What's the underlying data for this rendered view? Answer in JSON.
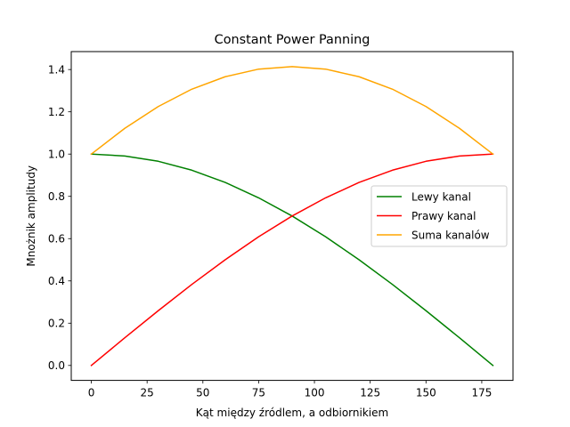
{
  "chart_data": {
    "type": "line",
    "title": "Constant Power Panning",
    "xlabel": "Kąt między źródlem, a odbiornikiem",
    "ylabel": "Mnożnik amplitudy",
    "xlim": [
      -9,
      189
    ],
    "ylim": [
      -0.0707,
      1.4849
    ],
    "xticks": [
      0,
      25,
      50,
      75,
      100,
      125,
      150,
      175
    ],
    "yticks": [
      0.0,
      0.2,
      0.4,
      0.6,
      0.8,
      1.0,
      1.2,
      1.4
    ],
    "ytick_labels": [
      "0.0",
      "0.2",
      "0.4",
      "0.6",
      "0.8",
      "1.0",
      "1.2",
      "1.4"
    ],
    "grid": false,
    "legend_position": "center-right",
    "x": [
      0,
      15,
      30,
      45,
      60,
      75,
      90,
      105,
      120,
      135,
      150,
      165,
      180
    ],
    "series": [
      {
        "name": "Lewy kanal",
        "color": "#008000",
        "values": [
          1.0,
          0.991,
          0.966,
          0.924,
          0.866,
          0.793,
          0.707,
          0.609,
          0.5,
          0.383,
          0.259,
          0.131,
          0.0
        ]
      },
      {
        "name": "Prawy kanal",
        "color": "#ff0000",
        "values": [
          0.0,
          0.131,
          0.259,
          0.383,
          0.5,
          0.609,
          0.707,
          0.793,
          0.866,
          0.924,
          0.966,
          0.991,
          1.0
        ]
      },
      {
        "name": "Suma kanalów",
        "color": "#ffa500",
        "values": [
          1.0,
          1.122,
          1.225,
          1.307,
          1.366,
          1.402,
          1.414,
          1.402,
          1.366,
          1.307,
          1.225,
          1.122,
          1.0
        ]
      }
    ]
  }
}
